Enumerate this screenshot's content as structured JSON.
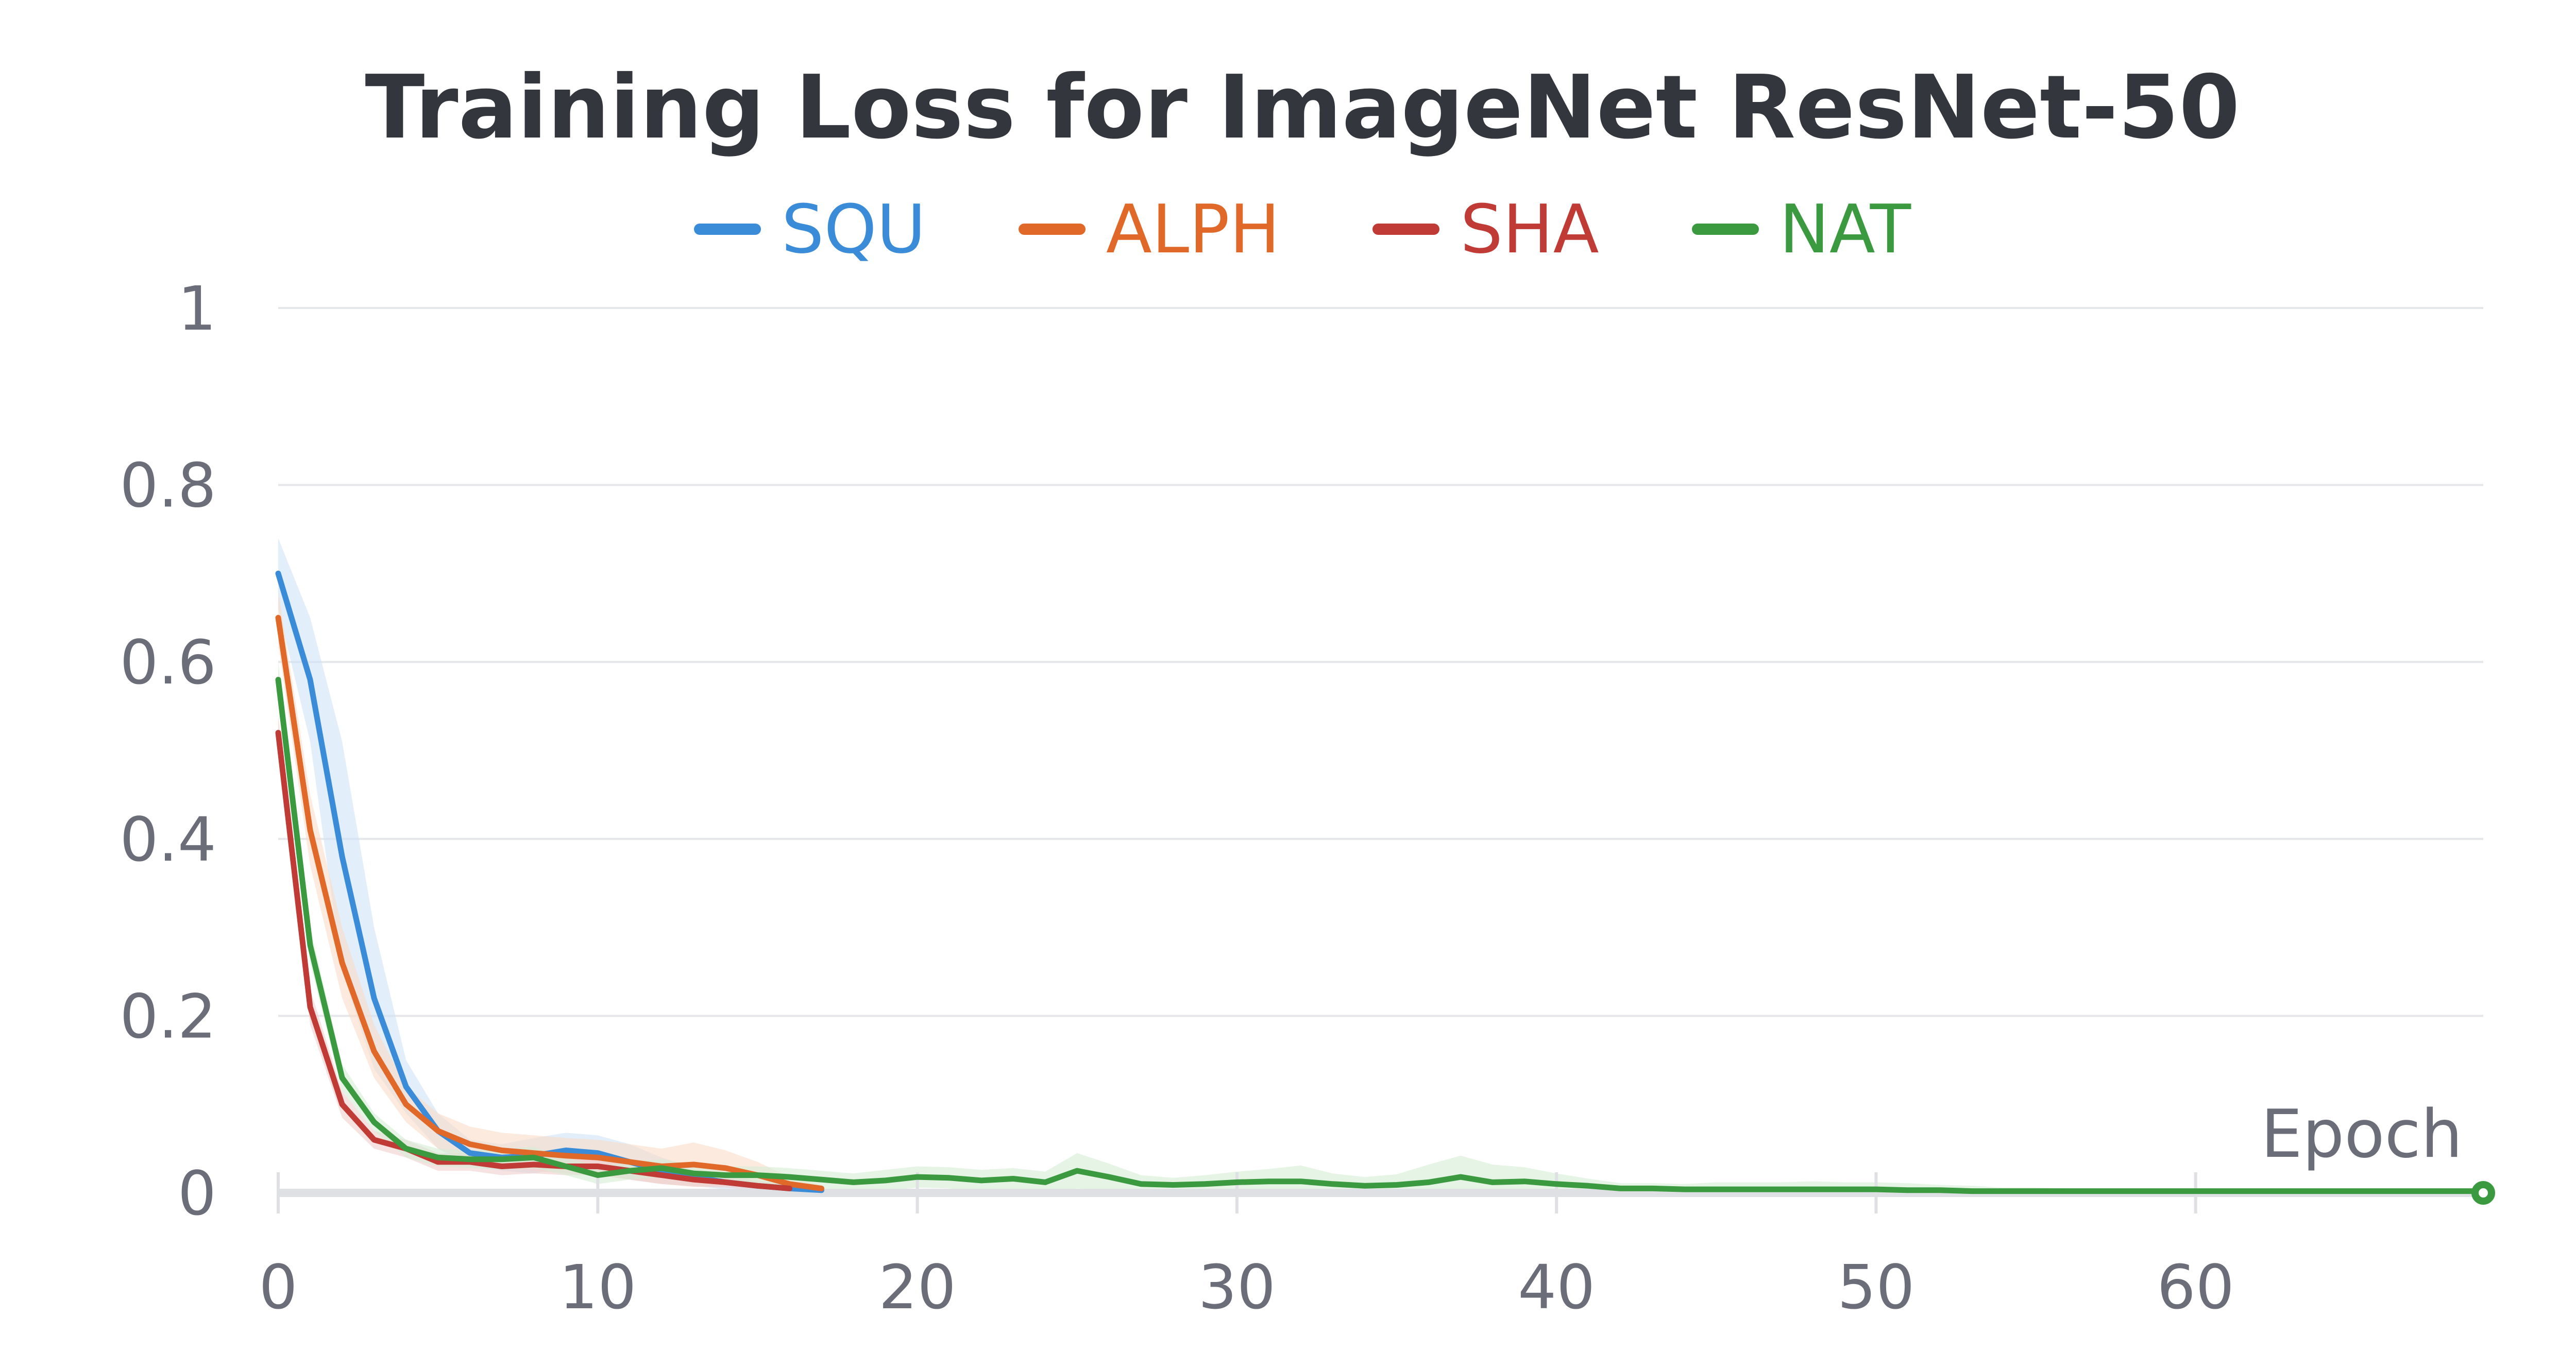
{
  "chart_data": {
    "type": "line",
    "title": "Training Loss for ImageNet ResNet-50",
    "xlabel": "Epoch",
    "ylabel": "",
    "xlim": [
      0,
      69
    ],
    "ylim": [
      0,
      1
    ],
    "xticks": [
      "0",
      "10",
      "20",
      "30",
      "40",
      "50",
      "60"
    ],
    "yticks": [
      "0",
      "0.2",
      "0.4",
      "0.6",
      "0.8",
      "1"
    ],
    "grid": true,
    "legend_position": "top-center",
    "series": [
      {
        "name": "SQU",
        "color": "#3a8bd8",
        "band_color": "#cfe2f5",
        "x": [
          0,
          1,
          2,
          3,
          4,
          5,
          6,
          7,
          8,
          9,
          10,
          11,
          12,
          13,
          14,
          15,
          16,
          17
        ],
        "y": [
          0.7,
          0.58,
          0.38,
          0.22,
          0.12,
          0.07,
          0.045,
          0.04,
          0.042,
          0.048,
          0.045,
          0.035,
          0.025,
          0.018,
          0.012,
          0.008,
          0.005,
          0.003
        ],
        "band": [
          0.04,
          0.07,
          0.13,
          0.08,
          0.03,
          0.02,
          0.015,
          0.015,
          0.02,
          0.02,
          0.02,
          0.02,
          0.015,
          0.01,
          0.008,
          0.006,
          0.004,
          0.003
        ]
      },
      {
        "name": "ALPH",
        "color": "#e0692a",
        "band_color": "#fadcc8",
        "x": [
          0,
          1,
          2,
          3,
          4,
          5,
          6,
          7,
          8,
          9,
          10,
          11,
          12,
          13,
          14,
          15,
          16,
          17
        ],
        "y": [
          0.65,
          0.41,
          0.26,
          0.16,
          0.1,
          0.07,
          0.055,
          0.048,
          0.045,
          0.042,
          0.04,
          0.035,
          0.03,
          0.032,
          0.028,
          0.02,
          0.01,
          0.005
        ],
        "band": [
          0.03,
          0.04,
          0.04,
          0.03,
          0.02,
          0.02,
          0.02,
          0.02,
          0.02,
          0.02,
          0.02,
          0.02,
          0.02,
          0.025,
          0.02,
          0.015,
          0.008,
          0.004
        ]
      },
      {
        "name": "SHA",
        "color": "#c03b36",
        "band_color": "#f0cfcd",
        "x": [
          0,
          1,
          2,
          3,
          4,
          5,
          6,
          7,
          8,
          9,
          10,
          11,
          12,
          13,
          14,
          15,
          16
        ],
        "y": [
          0.52,
          0.21,
          0.1,
          0.06,
          0.05,
          0.035,
          0.035,
          0.03,
          0.032,
          0.03,
          0.03,
          0.025,
          0.02,
          0.015,
          0.012,
          0.008,
          0.005
        ],
        "band": [
          0.02,
          0.02,
          0.015,
          0.01,
          0.01,
          0.01,
          0.01,
          0.01,
          0.01,
          0.01,
          0.01,
          0.01,
          0.01,
          0.008,
          0.006,
          0.005,
          0.004
        ]
      },
      {
        "name": "NAT",
        "color": "#3b9a3f",
        "band_color": "#d6ecd6",
        "x": [
          0,
          1,
          2,
          3,
          4,
          5,
          6,
          7,
          8,
          9,
          10,
          11,
          12,
          13,
          14,
          15,
          16,
          17,
          18,
          19,
          20,
          21,
          22,
          23,
          24,
          25,
          26,
          27,
          28,
          29,
          30,
          31,
          32,
          33,
          34,
          35,
          36,
          37,
          38,
          39,
          40,
          41,
          42,
          43,
          44,
          45,
          46,
          47,
          48,
          49,
          50,
          51,
          52,
          53,
          54,
          55,
          56,
          57,
          58,
          59,
          60,
          61,
          62,
          63,
          64,
          65,
          66,
          67,
          68,
          69
        ],
        "y": [
          0.58,
          0.28,
          0.13,
          0.08,
          0.05,
          0.04,
          0.038,
          0.038,
          0.04,
          0.03,
          0.02,
          0.025,
          0.028,
          0.022,
          0.02,
          0.02,
          0.018,
          0.015,
          0.012,
          0.014,
          0.018,
          0.017,
          0.014,
          0.016,
          0.012,
          0.025,
          0.018,
          0.01,
          0.009,
          0.01,
          0.012,
          0.013,
          0.013,
          0.01,
          0.008,
          0.009,
          0.012,
          0.018,
          0.012,
          0.013,
          0.01,
          0.008,
          0.005,
          0.005,
          0.004,
          0.004,
          0.004,
          0.004,
          0.004,
          0.004,
          0.004,
          0.003,
          0.003,
          0.002,
          0.002,
          0.002,
          0.002,
          0.002,
          0.002,
          0.002,
          0.002,
          0.002,
          0.002,
          0.002,
          0.002,
          0.002,
          0.002,
          0.002,
          0.002,
          0.002
        ],
        "band": [
          0.02,
          0.02,
          0.015,
          0.01,
          0.01,
          0.01,
          0.01,
          0.012,
          0.012,
          0.01,
          0.01,
          0.01,
          0.01,
          0.01,
          0.01,
          0.01,
          0.01,
          0.01,
          0.01,
          0.012,
          0.012,
          0.012,
          0.012,
          0.012,
          0.012,
          0.02,
          0.015,
          0.01,
          0.008,
          0.01,
          0.012,
          0.014,
          0.018,
          0.012,
          0.01,
          0.012,
          0.02,
          0.024,
          0.02,
          0.016,
          0.012,
          0.008,
          0.006,
          0.006,
          0.006,
          0.008,
          0.008,
          0.008,
          0.009,
          0.008,
          0.008,
          0.008,
          0.006,
          0.006,
          0.004,
          0.004,
          0.003,
          0.003,
          0.003,
          0.003,
          0.003,
          0.003,
          0.003,
          0.003,
          0.003,
          0.003,
          0.003,
          0.003,
          0.003,
          0.003
        ]
      }
    ]
  }
}
